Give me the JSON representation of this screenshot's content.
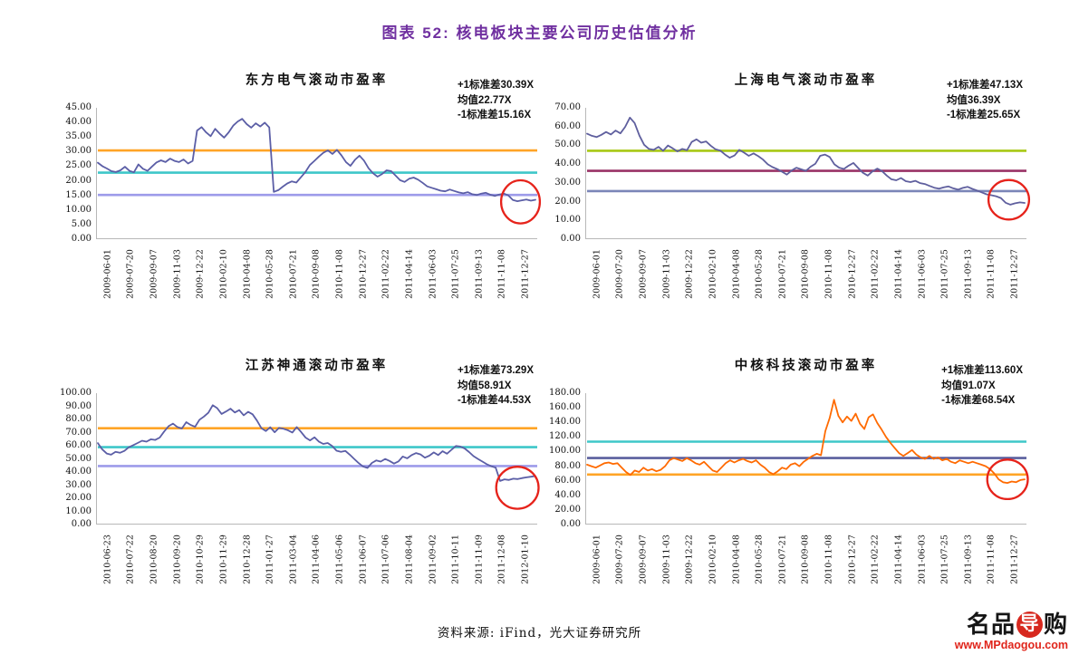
{
  "page": {
    "title": "图表 52:  核电板块主要公司历史估值分析",
    "title_color": "#7030A0",
    "source": "资料来源: iFind，光大证券研究所",
    "logo": {
      "prefix": "名品",
      "seal": "导",
      "suffix": "购",
      "url": "www.MPdaogou.com"
    }
  },
  "chart_data": [
    {
      "type": "line",
      "title": "东方电气滚动市盈率",
      "annotations": [
        "+1标准差30.39X",
        "均值22.77X",
        "-1标准差15.16X"
      ],
      "stats": {
        "plus1std": 30.39,
        "mean": 22.77,
        "minus1std": 15.16
      },
      "ylim": [
        0,
        45
      ],
      "ytick_step": 5,
      "grid": false,
      "legend": "none",
      "x_labels": [
        "2009-06-01",
        "2009-07-20",
        "2009-09-07",
        "2009-11-03",
        "2009-12-22",
        "2010-02-10",
        "2010-04-08",
        "2010-05-28",
        "2010-07-21",
        "2010-09-08",
        "2010-11-08",
        "2010-12-27",
        "2011-02-22",
        "2011-04-14",
        "2011-06-03",
        "2011-07-25",
        "2011-09-13",
        "2011-11-08",
        "2011-12-27"
      ],
      "values": [
        26.2,
        25.0,
        24.2,
        23.3,
        23.0,
        23.6,
        24.8,
        23.4,
        22.9,
        25.6,
        24.1,
        23.4,
        24.9,
        26.3,
        27.0,
        26.4,
        27.6,
        26.8,
        26.4,
        27.3,
        25.9,
        26.8,
        37.2,
        38.4,
        36.6,
        35.3,
        37.8,
        36.2,
        34.8,
        36.6,
        38.9,
        40.3,
        41.2,
        39.4,
        38.2,
        39.7,
        38.6,
        39.9,
        38.3,
        16.2,
        16.8,
        18.0,
        19.1,
        19.8,
        19.4,
        21.2,
        23.0,
        25.4,
        26.8,
        28.3,
        29.6,
        30.4,
        29.2,
        30.6,
        28.7,
        26.4,
        25.1,
        27.2,
        28.6,
        26.9,
        24.3,
        22.6,
        21.4,
        22.3,
        23.6,
        23.3,
        21.8,
        20.2,
        19.6,
        20.7,
        21.1,
        20.4,
        19.3,
        18.1,
        17.6,
        17.1,
        16.6,
        16.4,
        17.0,
        16.5,
        16.0,
        15.7,
        16.1,
        15.4,
        15.1,
        15.6,
        15.9,
        15.2,
        14.8,
        15.3,
        15.6,
        15.0,
        13.4,
        13.0,
        13.3,
        13.6,
        13.2,
        13.5
      ],
      "colors": {
        "line": "#5B5EA6",
        "plus1std": "#FFA426",
        "mean": "#3EC7C9",
        "minus1std": "#9D9BEA",
        "circle": "#E6231B"
      },
      "highlight_circle": {
        "x_frac": 0.962,
        "y_value": 12.8,
        "rx_frac": 0.044,
        "ry_value": 7.4
      }
    },
    {
      "type": "line",
      "title": "上海电气滚动市盈率",
      "annotations": [
        "+1标准差47.13X",
        "均值36.39X",
        "-1标准差25.65X"
      ],
      "stats": {
        "plus1std": 47.13,
        "mean": 36.39,
        "minus1std": 25.65
      },
      "ylim": [
        0,
        70
      ],
      "ytick_step": 10,
      "grid": false,
      "legend": "none",
      "x_labels": [
        "2009-06-01",
        "2009-07-20",
        "2009-09-07",
        "2009-11-03",
        "2009-12-22",
        "2010-02-10",
        "2010-04-08",
        "2010-05-28",
        "2010-07-21",
        "2010-09-08",
        "2010-11-08",
        "2010-12-27",
        "2011-02-22",
        "2011-04-14",
        "2011-06-03",
        "2011-07-25",
        "2011-09-13",
        "2011-11-08",
        "2011-12-27"
      ],
      "values": [
        56.2,
        55.1,
        54.4,
        55.6,
        57.1,
        55.8,
        57.9,
        56.4,
        59.8,
        64.8,
        61.9,
        55.2,
        50.3,
        48.1,
        47.6,
        49.2,
        47.1,
        49.9,
        48.4,
        46.8,
        48.1,
        47.4,
        51.8,
        53.2,
        51.4,
        52.1,
        49.8,
        47.9,
        47.2,
        45.1,
        43.4,
        44.6,
        47.6,
        46.1,
        44.4,
        45.7,
        44.2,
        42.4,
        39.9,
        38.4,
        37.3,
        35.9,
        34.4,
        36.6,
        38.1,
        37.2,
        36.4,
        38.6,
        40.2,
        44.4,
        45.1,
        43.8,
        39.9,
        38.1,
        37.4,
        39.2,
        40.6,
        37.9,
        35.4,
        33.9,
        36.1,
        37.6,
        36.3,
        33.9,
        31.9,
        31.4,
        32.6,
        30.9,
        30.4,
        31.1,
        29.9,
        29.4,
        28.4,
        27.4,
        26.9,
        27.6,
        28.1,
        27.1,
        26.4,
        27.3,
        27.9,
        26.8,
        25.9,
        24.9,
        23.9,
        23.4,
        22.9,
        21.9,
        19.4,
        18.4,
        19.1,
        19.6,
        19.3
      ],
      "colors": {
        "line": "#5F5F9E",
        "plus1std": "#A8C814",
        "mean": "#993366",
        "minus1std": "#7B86B8",
        "circle": "#E6231B"
      },
      "highlight_circle": {
        "x_frac": 0.96,
        "y_value": 21.0,
        "rx_frac": 0.046,
        "ry_value": 10.5
      }
    },
    {
      "type": "line",
      "title": "江苏神通滚动市盈率",
      "annotations": [
        "+1标准差73.29X",
        "均值58.91X",
        "-1标准差44.53X"
      ],
      "stats": {
        "plus1std": 73.29,
        "mean": 58.91,
        "minus1std": 44.53
      },
      "ylim": [
        0,
        100
      ],
      "ytick_step": 10,
      "grid": false,
      "legend": "none",
      "x_labels": [
        "2010-06-23",
        "2010-07-22",
        "2010-08-20",
        "2010-09-20",
        "2010-10-29",
        "2010-11-29",
        "2010-12-28",
        "2011-01-27",
        "2011-03-04",
        "2011-04-06",
        "2011-05-06",
        "2011-06-07",
        "2011-07-06",
        "2011-08-04",
        "2011-09-02",
        "2011-10-11",
        "2011-11-09",
        "2011-12-08",
        "2012-01-10"
      ],
      "values": [
        62.0,
        57.2,
        54.1,
        53.2,
        55.3,
        54.6,
        56.1,
        58.8,
        60.4,
        62.1,
        63.8,
        63.1,
        64.9,
        64.4,
        66.2,
        70.8,
        74.9,
        76.8,
        74.2,
        73.1,
        77.9,
        75.8,
        74.4,
        79.8,
        82.2,
        85.1,
        90.8,
        88.6,
        84.2,
        86.1,
        88.2,
        85.3,
        87.1,
        83.2,
        85.8,
        83.9,
        79.2,
        73.4,
        71.2,
        74.1,
        70.3,
        73.6,
        72.9,
        71.8,
        70.1,
        74.2,
        70.4,
        66.2,
        64.1,
        66.4,
        63.2,
        61.4,
        62.1,
        59.8,
        56.2,
        55.4,
        56.1,
        53.2,
        49.9,
        46.8,
        44.2,
        43.1,
        46.9,
        48.8,
        47.9,
        49.9,
        48.4,
        46.4,
        48.1,
        51.8,
        50.4,
        52.9,
        54.4,
        53.4,
        50.9,
        52.4,
        54.9,
        52.9,
        55.8,
        53.9,
        56.9,
        59.8,
        59.4,
        57.9,
        55.2,
        52.1,
        49.9,
        47.9,
        45.9,
        44.4,
        43.4,
        33.2,
        34.4,
        33.9,
        34.9,
        34.6,
        35.4,
        35.9,
        36.4,
        36.9
      ],
      "colors": {
        "line": "#5B5EA6",
        "plus1std": "#FFA426",
        "mean": "#3EC7C9",
        "minus1std": "#9D9BEA",
        "circle": "#E6231B"
      },
      "highlight_circle": {
        "x_frac": 0.955,
        "y_value": 28.0,
        "rx_frac": 0.048,
        "ry_value": 16.0
      }
    },
    {
      "type": "line",
      "title": "中核科技滚动市盈率",
      "annotations": [
        "+1标准差113.60X",
        "均值91.07X",
        "-1标准差68.54X"
      ],
      "stats": {
        "plus1std": 113.6,
        "mean": 91.07,
        "minus1std": 68.54
      },
      "ylim": [
        0,
        180
      ],
      "ytick_step": 20,
      "grid": false,
      "legend": "none",
      "x_labels": [
        "2009-06-01",
        "2009-07-20",
        "2009-09-07",
        "2009-11-03",
        "2009-12-22",
        "2010-02-10",
        "2010-04-08",
        "2010-05-28",
        "2010-07-21",
        "2010-09-08",
        "2010-11-08",
        "2010-12-27",
        "2011-02-22",
        "2011-04-14",
        "2011-06-03",
        "2011-07-25",
        "2011-09-13",
        "2011-11-08",
        "2011-12-27"
      ],
      "values": [
        82,
        80,
        78,
        81,
        84,
        85,
        83,
        84,
        78,
        72,
        68,
        74,
        72,
        78,
        74,
        76,
        73,
        75,
        80,
        88,
        91,
        89,
        87,
        91,
        88,
        84,
        82,
        86,
        80,
        74,
        72,
        78,
        84,
        88,
        85,
        88,
        90,
        87,
        85,
        88,
        82,
        78,
        72,
        69,
        73,
        78,
        76,
        82,
        84,
        80,
        86,
        90,
        94,
        97,
        95,
        128,
        146,
        171,
        149,
        140,
        148,
        142,
        152,
        138,
        131,
        147,
        151,
        139,
        130,
        120,
        112,
        105,
        98,
        94,
        98,
        102,
        96,
        92,
        90,
        94,
        90,
        92,
        88,
        90,
        86,
        84,
        88,
        86,
        84,
        86,
        84,
        82,
        80,
        76,
        70,
        62,
        58,
        57,
        59,
        58,
        61,
        62
      ],
      "colors": {
        "line": "#FF6A00",
        "plus1std": "#3EC7C9",
        "mean": "#5A5F9E",
        "minus1std": "#FFA426",
        "circle": "#E6231B"
      },
      "highlight_circle": {
        "x_frac": 0.957,
        "y_value": 62.0,
        "rx_frac": 0.046,
        "ry_value": 27.0
      }
    }
  ]
}
